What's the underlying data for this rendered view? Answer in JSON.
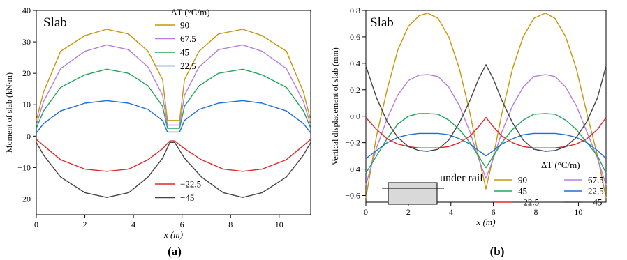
{
  "chart_data": [
    {
      "type": "line",
      "panel_label": "(a)",
      "inset_title": "Slab",
      "xlabel": "x (m)",
      "ylabel": "Moment of slab (kN·m)",
      "xlim": [
        0,
        11.3
      ],
      "ylim": [
        -25,
        40
      ],
      "xticks": [
        0,
        2,
        4,
        6,
        8,
        10
      ],
      "yticks": [
        -20,
        -10,
        0,
        10,
        20,
        30,
        40
      ],
      "ytick_labels": [
        "−20",
        "−10",
        "0",
        "10",
        "20",
        "30",
        "40"
      ],
      "legend_title": "ΔT (°C/m)",
      "series": [
        {
          "name": "90",
          "color": "#c8960c",
          "x": [
            0,
            0.3,
            1.0,
            2.0,
            2.9,
            3.8,
            4.6,
            5.2,
            5.4,
            5.6,
            5.9,
            6.1,
            6.7,
            7.5,
            8.5,
            9.3,
            10.3,
            11.0,
            11.3
          ],
          "y": [
            5,
            14,
            27,
            32,
            34,
            32.5,
            27,
            18,
            5,
            5,
            5,
            18,
            27,
            32.5,
            34,
            32,
            27,
            14,
            5
          ]
        },
        {
          "name": "67.5",
          "color": "#b57ee0",
          "x": [
            0,
            0.3,
            1.0,
            2.0,
            2.9,
            3.8,
            4.6,
            5.2,
            5.4,
            5.6,
            5.9,
            6.1,
            6.7,
            7.5,
            8.5,
            9.3,
            10.3,
            11.0,
            11.3
          ],
          "y": [
            3.5,
            11,
            21.5,
            27,
            29,
            27.5,
            22,
            13,
            3.5,
            3.5,
            3.5,
            13,
            22,
            27.5,
            29,
            27,
            21.5,
            11,
            3.5
          ]
        },
        {
          "name": "45",
          "color": "#22a55a",
          "x": [
            0,
            0.3,
            1.0,
            2.0,
            2.9,
            3.8,
            4.6,
            5.2,
            5.4,
            5.6,
            5.9,
            6.1,
            6.7,
            7.5,
            8.5,
            9.3,
            10.3,
            11.0,
            11.3
          ],
          "y": [
            2.5,
            8,
            15.5,
            19.5,
            21.3,
            20,
            16,
            9.5,
            2.5,
            2.5,
            2.5,
            9.5,
            16,
            20,
            21.3,
            19.5,
            15.5,
            8,
            2.5
          ]
        },
        {
          "name": "22.5",
          "color": "#1f6fd6",
          "x": [
            0,
            0.3,
            1.0,
            2.0,
            2.9,
            3.8,
            4.6,
            5.2,
            5.4,
            5.6,
            5.9,
            6.1,
            6.7,
            7.5,
            8.5,
            9.3,
            10.3,
            11.0,
            11.3
          ],
          "y": [
            1,
            4,
            8,
            10.5,
            11.3,
            10.5,
            8.5,
            5,
            1.3,
            1.3,
            1.3,
            5,
            8.5,
            10.5,
            11.3,
            10.5,
            8,
            4,
            1
          ]
        },
        {
          "name": "−22.5",
          "color": "#e0282a",
          "x": [
            0,
            0.3,
            1.0,
            2.0,
            2.9,
            3.8,
            4.6,
            5.2,
            5.5,
            5.7,
            6.1,
            6.8,
            7.7,
            8.5,
            9.3,
            10.3,
            11.0,
            11.3
          ],
          "y": [
            -1,
            -3,
            -7.5,
            -10.5,
            -11.2,
            -10.5,
            -7.5,
            -4,
            -1.5,
            -1.5,
            -4,
            -7.5,
            -10.5,
            -11.2,
            -10.5,
            -7.5,
            -3,
            -1
          ]
        },
        {
          "name": "−45",
          "color": "#444444",
          "x": [
            0,
            0.3,
            1.0,
            2.0,
            2.9,
            3.8,
            4.6,
            5.2,
            5.5,
            5.7,
            6.1,
            6.8,
            7.7,
            8.5,
            9.3,
            10.3,
            11.0,
            11.3
          ],
          "y": [
            -2,
            -6,
            -13,
            -18,
            -19.5,
            -18,
            -13,
            -7,
            -2,
            -2,
            -7,
            -13,
            -18,
            -19.5,
            -18,
            -13,
            -6,
            -2
          ]
        }
      ]
    },
    {
      "type": "line",
      "panel_label": "(b)",
      "inset_title": "Slab",
      "xlabel": "x (m)",
      "ylabel": "Vertical displacement of slab (mm)",
      "xlim": [
        0,
        11.3
      ],
      "ylim": [
        -0.65,
        0.8
      ],
      "xticks": [
        0,
        2,
        4,
        6,
        8,
        10
      ],
      "yticks": [
        -0.6,
        -0.4,
        -0.2,
        0.0,
        0.2,
        0.4,
        0.6,
        0.8
      ],
      "ytick_labels": [
        "−0.6",
        "−0.4",
        "−0.2",
        "0.0",
        "0.2",
        "0.4",
        "0.6",
        "0.8"
      ],
      "legend_title": "ΔT (°C/m)",
      "inset_label": "under rail",
      "series": [
        {
          "name": "90",
          "color": "#c8960c",
          "x": [
            0,
            0.5,
            1.0,
            1.5,
            2.0,
            2.5,
            2.9,
            3.4,
            3.9,
            4.4,
            4.9,
            5.3,
            5.65,
            6.0,
            6.4,
            6.9,
            7.4,
            7.9,
            8.45,
            8.9,
            9.4,
            9.9,
            10.4,
            10.9,
            11.3
          ],
          "y": [
            -0.62,
            -0.15,
            0.2,
            0.5,
            0.68,
            0.76,
            0.78,
            0.74,
            0.6,
            0.36,
            0.02,
            -0.3,
            -0.55,
            -0.3,
            0.02,
            0.36,
            0.6,
            0.74,
            0.78,
            0.74,
            0.6,
            0.36,
            0.02,
            -0.3,
            -0.62
          ]
        },
        {
          "name": "67.5",
          "color": "#b57ee0",
          "x": [
            0,
            0.5,
            1.0,
            1.5,
            2.0,
            2.5,
            2.9,
            3.4,
            3.9,
            4.4,
            4.9,
            5.3,
            5.65,
            6.0,
            6.4,
            6.9,
            7.4,
            7.9,
            8.45,
            8.9,
            9.4,
            9.9,
            10.4,
            10.9,
            11.3
          ],
          "y": [
            -0.52,
            -0.24,
            -0.02,
            0.16,
            0.27,
            0.31,
            0.315,
            0.3,
            0.22,
            0.08,
            -0.12,
            -0.32,
            -0.47,
            -0.32,
            -0.12,
            0.08,
            0.22,
            0.3,
            0.315,
            0.3,
            0.22,
            0.08,
            -0.12,
            -0.32,
            -0.52
          ]
        },
        {
          "name": "45",
          "color": "#22a55a",
          "x": [
            0,
            0.5,
            1.0,
            1.5,
            2.0,
            2.5,
            2.9,
            3.4,
            3.9,
            4.4,
            4.9,
            5.3,
            5.65,
            6.0,
            6.4,
            6.9,
            7.4,
            7.9,
            8.45,
            8.9,
            9.4,
            9.9,
            10.4,
            10.9,
            11.3
          ],
          "y": [
            -0.43,
            -0.3,
            -0.17,
            -0.06,
            0.0,
            0.02,
            0.02,
            0.015,
            -0.03,
            -0.1,
            -0.2,
            -0.3,
            -0.39,
            -0.3,
            -0.2,
            -0.1,
            -0.03,
            0.015,
            0.02,
            0.015,
            -0.03,
            -0.1,
            -0.2,
            -0.3,
            -0.43
          ]
        },
        {
          "name": "22.5",
          "color": "#1f6fd6",
          "x": [
            0,
            0.5,
            1.0,
            1.5,
            2.0,
            2.5,
            2.9,
            3.4,
            3.9,
            4.4,
            4.9,
            5.3,
            5.65,
            6.0,
            6.4,
            6.9,
            7.4,
            7.9,
            8.45,
            8.9,
            9.4,
            9.9,
            10.4,
            10.9,
            11.3
          ],
          "y": [
            -0.32,
            -0.26,
            -0.2,
            -0.16,
            -0.14,
            -0.13,
            -0.13,
            -0.13,
            -0.14,
            -0.17,
            -0.21,
            -0.26,
            -0.3,
            -0.26,
            -0.21,
            -0.17,
            -0.14,
            -0.13,
            -0.13,
            -0.13,
            -0.14,
            -0.16,
            -0.2,
            -0.26,
            -0.32
          ]
        },
        {
          "name": "−22.5",
          "color": "#e0282a",
          "x": [
            0,
            0.5,
            1.0,
            1.5,
            2.0,
            2.5,
            2.9,
            3.4,
            3.9,
            4.4,
            4.9,
            5.3,
            5.65,
            6.0,
            6.4,
            6.9,
            7.4,
            7.9,
            8.45,
            8.9,
            9.4,
            9.9,
            10.4,
            10.9,
            11.3
          ],
          "y": [
            -0.01,
            -0.1,
            -0.17,
            -0.21,
            -0.23,
            -0.24,
            -0.24,
            -0.24,
            -0.23,
            -0.2,
            -0.15,
            -0.08,
            -0.01,
            -0.08,
            -0.15,
            -0.2,
            -0.23,
            -0.24,
            -0.24,
            -0.24,
            -0.23,
            -0.21,
            -0.17,
            -0.1,
            -0.01
          ]
        },
        {
          "name": "−45",
          "color": "#444444",
          "x": [
            0,
            0.5,
            1.0,
            1.5,
            2.0,
            2.5,
            2.9,
            3.4,
            3.9,
            4.4,
            4.9,
            5.3,
            5.65,
            6.0,
            6.4,
            6.9,
            7.4,
            7.9,
            8.45,
            8.9,
            9.4,
            9.9,
            10.4,
            10.9,
            11.3
          ],
          "y": [
            0.38,
            0.14,
            -0.04,
            -0.16,
            -0.23,
            -0.26,
            -0.265,
            -0.25,
            -0.18,
            -0.05,
            0.12,
            0.28,
            0.39,
            0.28,
            0.12,
            -0.05,
            -0.18,
            -0.25,
            -0.265,
            -0.26,
            -0.23,
            -0.16,
            -0.04,
            0.14,
            0.38
          ]
        }
      ]
    }
  ]
}
